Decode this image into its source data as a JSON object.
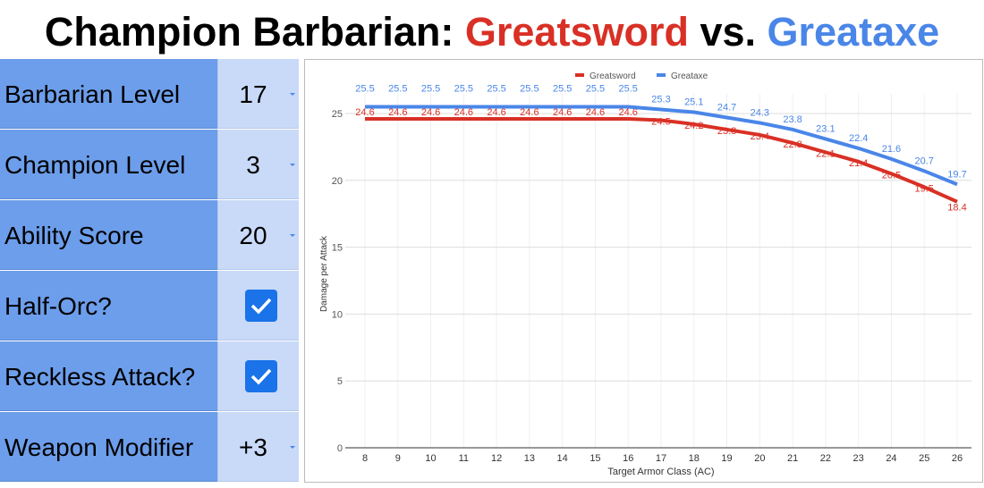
{
  "title": {
    "part1": "Champion Barbarian: ",
    "part2": "Greatsword",
    "part3": " vs. ",
    "part4": "Greataxe"
  },
  "inputs": [
    {
      "label": "Barbarian Level",
      "value": "17",
      "type": "dropdown"
    },
    {
      "label": "Champion Level",
      "value": "3",
      "type": "dropdown"
    },
    {
      "label": "Ability Score",
      "value": "20",
      "type": "dropdown"
    },
    {
      "label": "Half-Orc?",
      "checked": true,
      "type": "checkbox"
    },
    {
      "label": "Reckless Attack?",
      "checked": true,
      "type": "checkbox"
    },
    {
      "label": "Weapon Modifier",
      "value": "+3",
      "type": "dropdown"
    }
  ],
  "colors": {
    "greatsword": "#d93025",
    "greataxe": "#4a86e8",
    "label_bg": "#6d9eeb",
    "value_bg": "#c9daf8"
  },
  "chart_data": {
    "type": "line",
    "xlabel": "Target Armor Class (AC)",
    "ylabel": "Damage per Attack",
    "x": [
      8,
      9,
      10,
      11,
      12,
      13,
      14,
      15,
      16,
      17,
      18,
      19,
      20,
      21,
      22,
      23,
      24,
      25,
      26
    ],
    "ylim": [
      0,
      27
    ],
    "yticks": [
      0,
      5,
      10,
      15,
      20,
      25
    ],
    "grid": true,
    "legend": "top",
    "series": [
      {
        "name": "Greatsword",
        "color": "#d93025",
        "values": [
          24.6,
          24.6,
          24.6,
          24.6,
          24.6,
          24.6,
          24.6,
          24.6,
          24.6,
          24.5,
          24.2,
          23.8,
          23.4,
          22.8,
          22.1,
          21.4,
          20.5,
          19.5,
          18.4
        ]
      },
      {
        "name": "Greataxe",
        "color": "#4a86e8",
        "values": [
          25.5,
          25.5,
          25.5,
          25.5,
          25.5,
          25.5,
          25.5,
          25.5,
          25.5,
          25.3,
          25.1,
          24.7,
          24.3,
          23.8,
          23.1,
          22.4,
          21.6,
          20.7,
          19.7
        ]
      }
    ]
  }
}
